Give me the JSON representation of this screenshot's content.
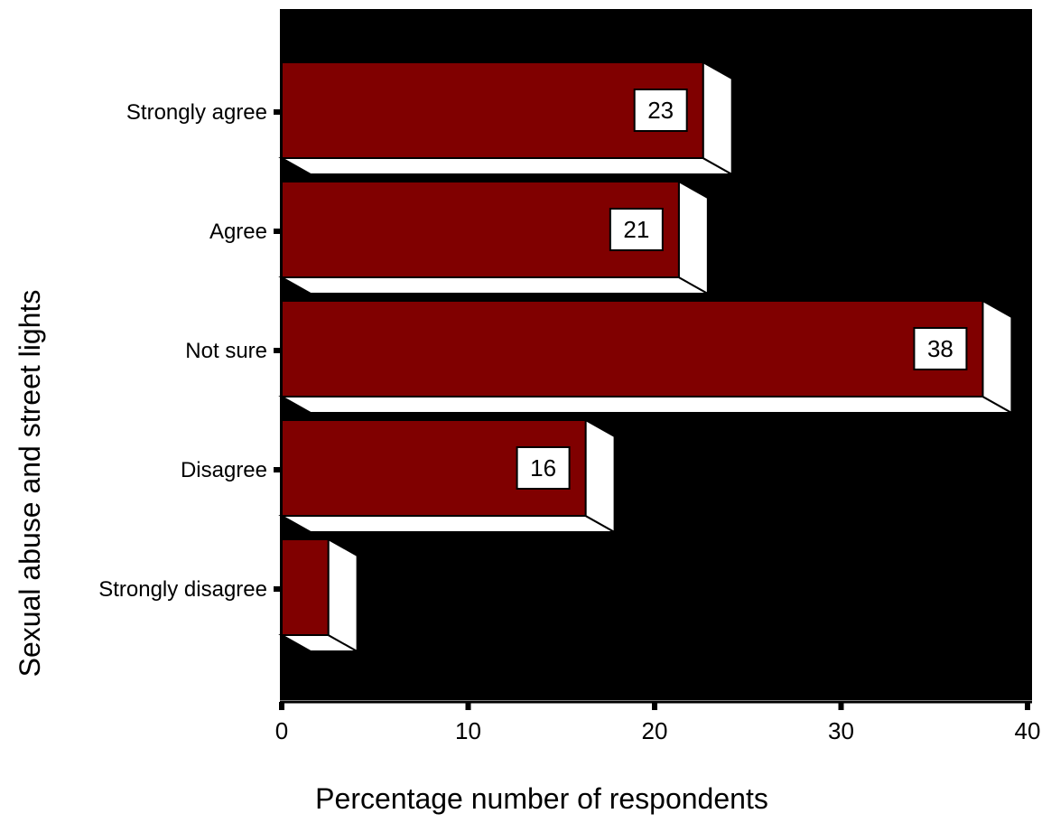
{
  "chart_data": {
    "type": "bar",
    "orientation": "horizontal",
    "style": "3d",
    "xlabel": "Percentage number of respondents",
    "ylabel": "Sexual abuse and street lights",
    "xlim": [
      0,
      40
    ],
    "xticks": [
      0,
      10,
      20,
      30,
      40
    ],
    "categories": [
      "Strongly agree",
      "Agree",
      "Not sure",
      "Disagree",
      "Strongly disagree"
    ],
    "values": [
      22.6,
      21.3,
      37.6,
      16.3,
      2.5
    ],
    "data_labels": [
      "23",
      "21",
      "38",
      "16",
      ""
    ],
    "colors": {
      "plot_background": "#000000",
      "bar_face": "#800000",
      "bar_side": "#ffffff",
      "label_box": "#ffffff"
    },
    "grid": false,
    "legend": "none"
  }
}
